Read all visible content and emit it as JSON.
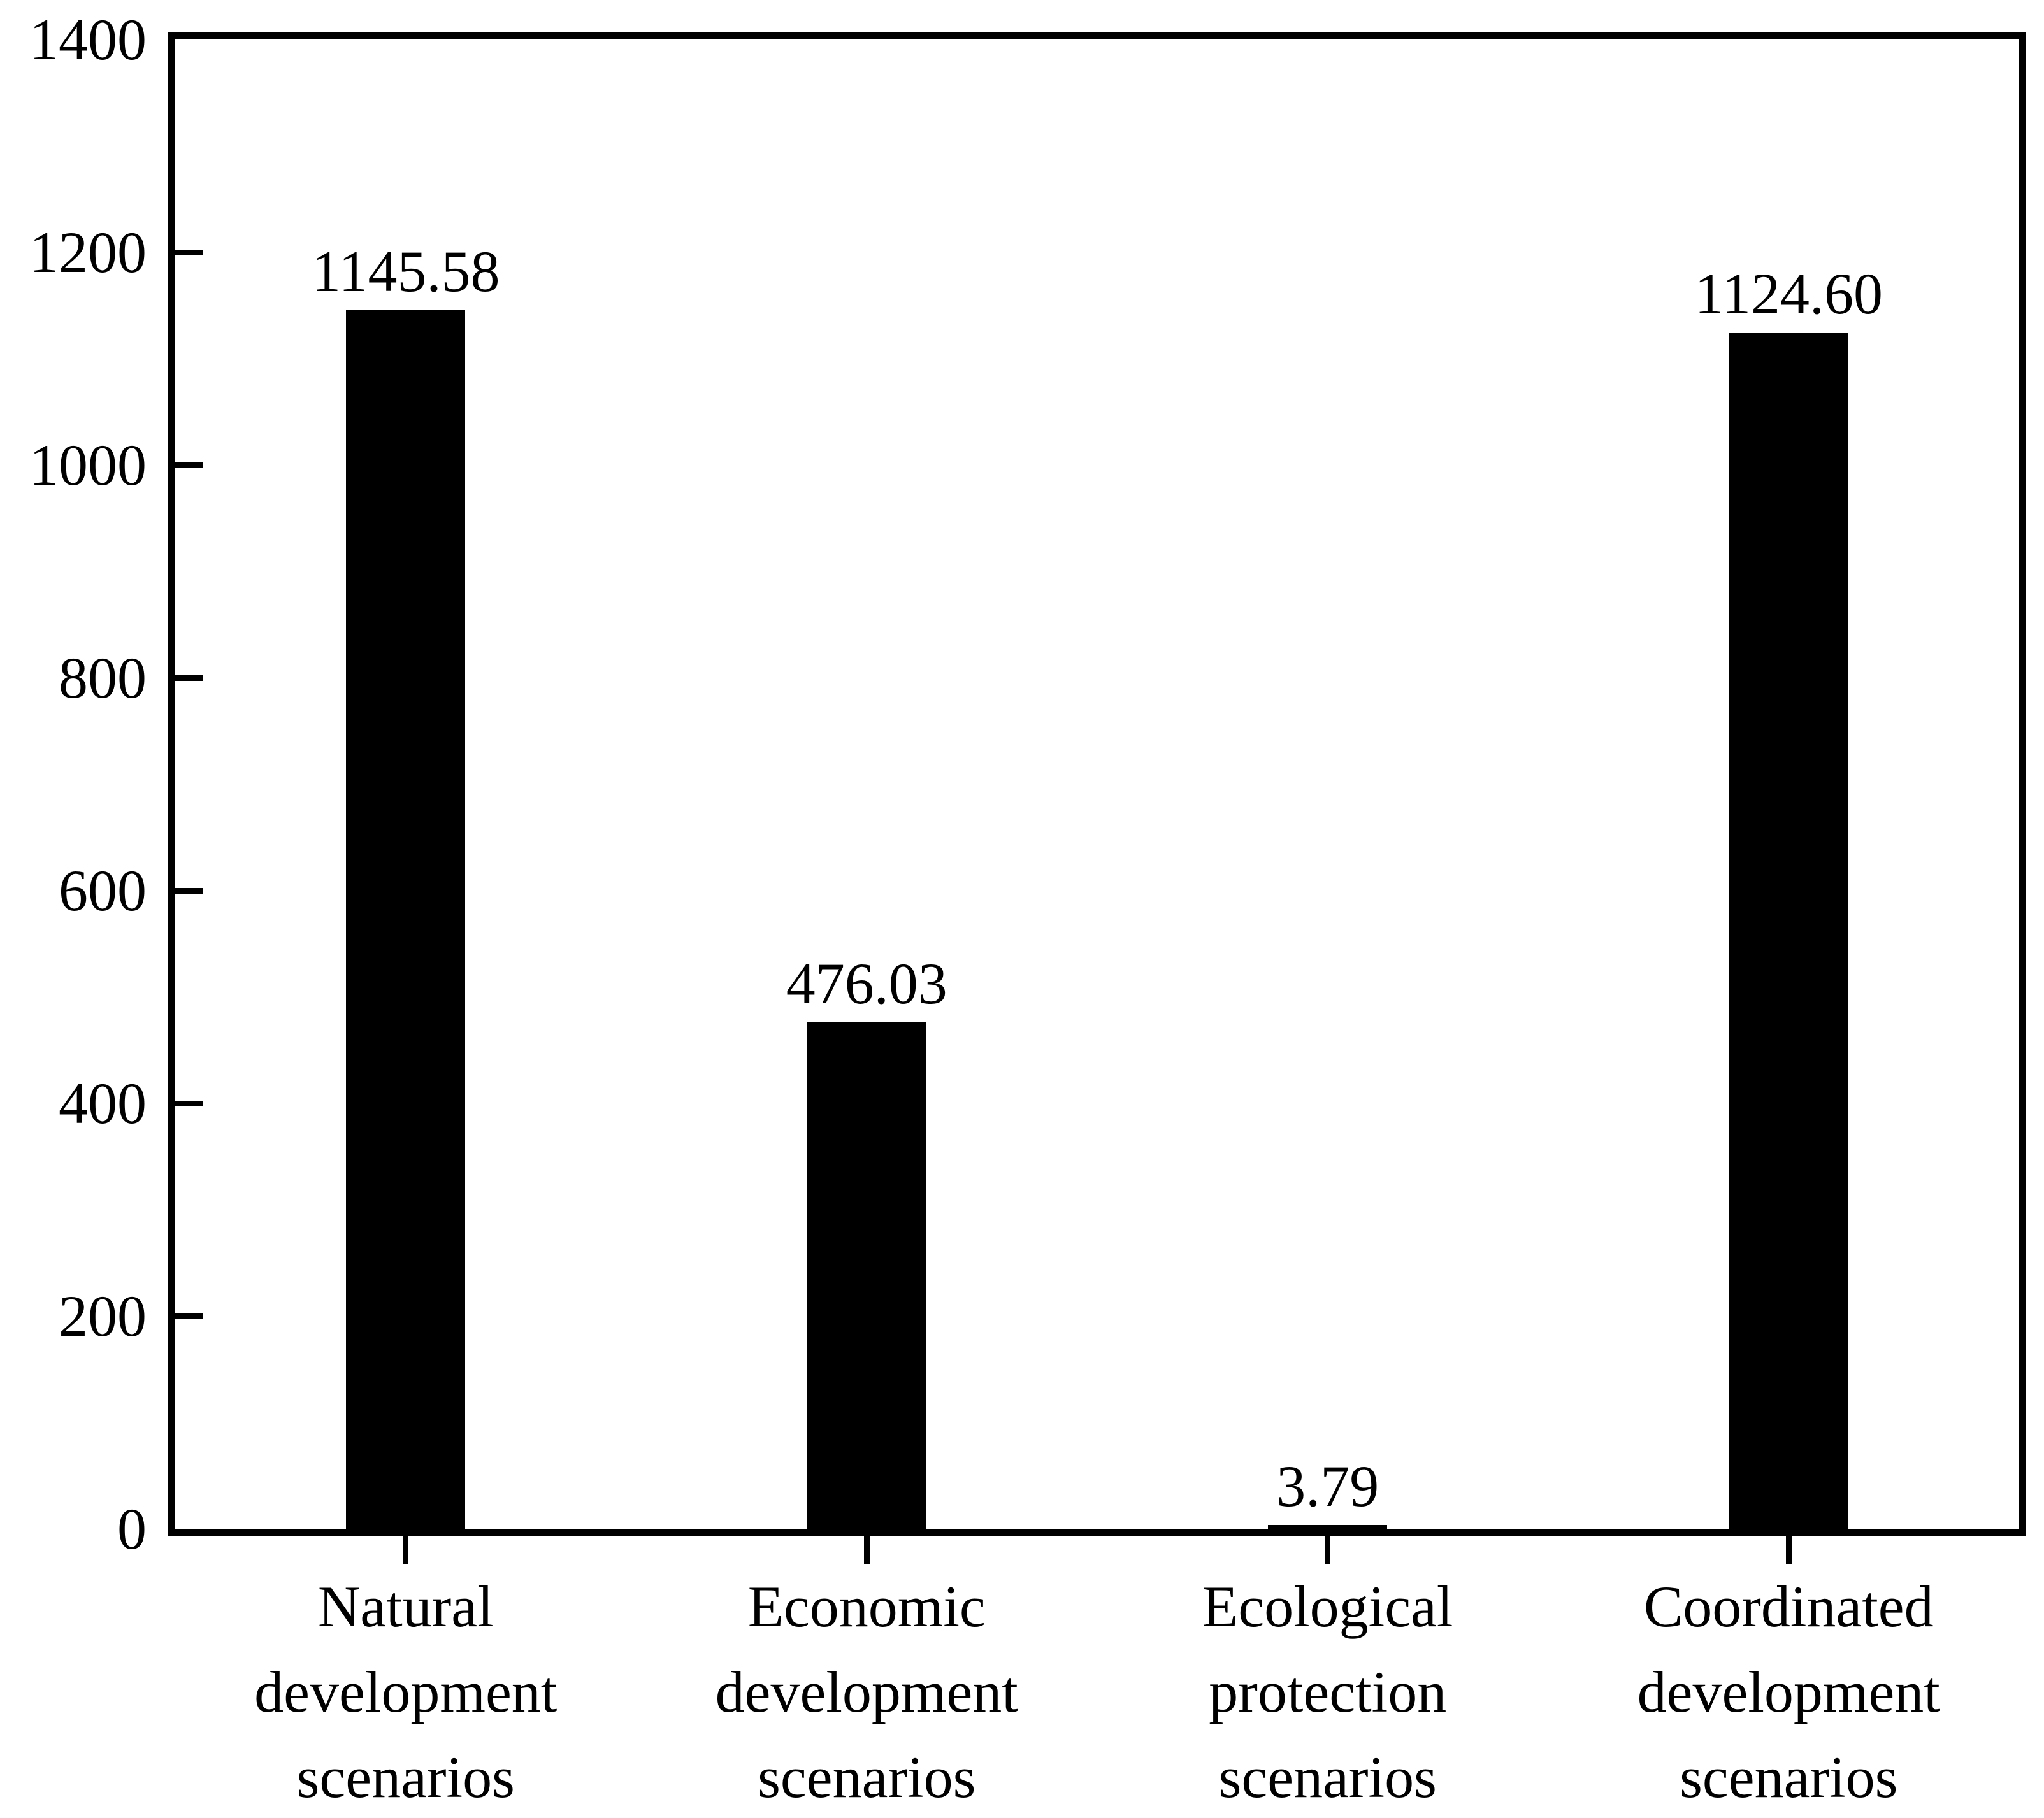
{
  "chart_data": {
    "type": "bar",
    "title": "",
    "xlabel": "",
    "ylabel": "",
    "categories": [
      "Natural development scenarios",
      "Economic development scenarios",
      "Ecological protection scenarios",
      "Coordinated development scenarios"
    ],
    "values": [
      1145.58,
      476.03,
      3.79,
      1124.6
    ],
    "value_labels": [
      "1145.58",
      "476.03",
      "3.79",
      "1124.60"
    ],
    "yticks": [
      0,
      200,
      400,
      600,
      800,
      1000,
      1200,
      1400
    ],
    "ytick_labels": [
      "0",
      "200",
      "400",
      "600",
      "800",
      "1000",
      "1200",
      "1400"
    ],
    "ylim": [
      0,
      1400
    ],
    "grid": false,
    "legend": null,
    "bar_color": "#000000",
    "axis_color": "#000000",
    "text_color": "#000000",
    "background_color": "#ffffff"
  }
}
